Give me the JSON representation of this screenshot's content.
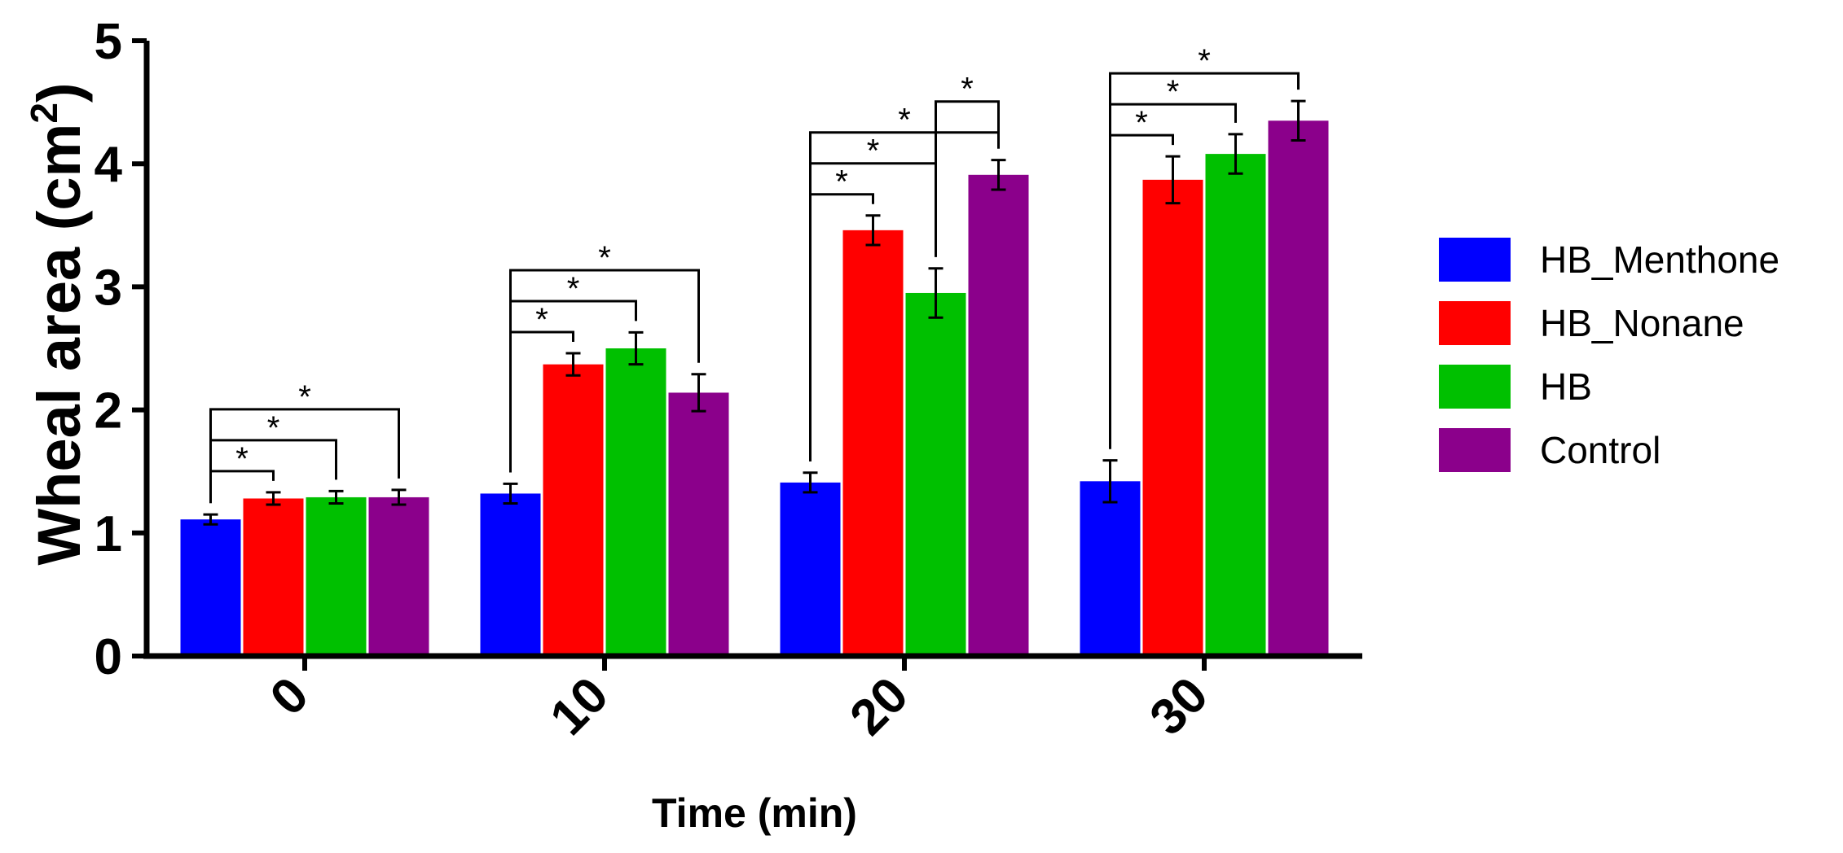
{
  "chart_data": {
    "type": "bar",
    "title": "",
    "xlabel": "Time (min)",
    "ylabel": "Wheal area (cm",
    "ylabel_sup": "2",
    "ylabel_close": ")",
    "ylim": [
      0,
      5
    ],
    "yticks": [
      0,
      1,
      2,
      3,
      4,
      5
    ],
    "categories": [
      "0",
      "10",
      "20",
      "30"
    ],
    "legend_position": "right",
    "series": [
      {
        "name": "HB_Menthone",
        "color": "#0000ff",
        "values": [
          1.11,
          1.32,
          1.41,
          1.42
        ],
        "errors": [
          0.04,
          0.08,
          0.08,
          0.17
        ]
      },
      {
        "name": "HB_Nonane",
        "color": "#ff0000",
        "values": [
          1.28,
          2.37,
          3.46,
          3.87
        ],
        "errors": [
          0.05,
          0.09,
          0.12,
          0.19
        ]
      },
      {
        "name": "HB",
        "color": "#00c000",
        "values": [
          1.29,
          2.5,
          2.95,
          4.08
        ],
        "errors": [
          0.05,
          0.13,
          0.2,
          0.16
        ]
      },
      {
        "name": "Control",
        "color": "#8b008b",
        "values": [
          1.29,
          2.14,
          3.91,
          4.35
        ],
        "errors": [
          0.06,
          0.15,
          0.12,
          0.16
        ]
      }
    ],
    "significance": [
      {
        "group": 0,
        "from": 0,
        "to": 1,
        "label": "*"
      },
      {
        "group": 0,
        "from": 0,
        "to": 2,
        "label": "*"
      },
      {
        "group": 0,
        "from": 0,
        "to": 3,
        "label": "*"
      },
      {
        "group": 1,
        "from": 0,
        "to": 1,
        "label": "*"
      },
      {
        "group": 1,
        "from": 0,
        "to": 2,
        "label": "*"
      },
      {
        "group": 1,
        "from": 0,
        "to": 3,
        "label": "*"
      },
      {
        "group": 2,
        "from": 0,
        "to": 1,
        "label": "*"
      },
      {
        "group": 2,
        "from": 0,
        "to": 2,
        "label": "*"
      },
      {
        "group": 2,
        "from": 0,
        "to": 3,
        "label": "*"
      },
      {
        "group": 2,
        "from": 2,
        "to": 3,
        "label": "*"
      },
      {
        "group": 3,
        "from": 0,
        "to": 1,
        "label": "*"
      },
      {
        "group": 3,
        "from": 0,
        "to": 2,
        "label": "*"
      },
      {
        "group": 3,
        "from": 0,
        "to": 3,
        "label": "*"
      }
    ]
  }
}
